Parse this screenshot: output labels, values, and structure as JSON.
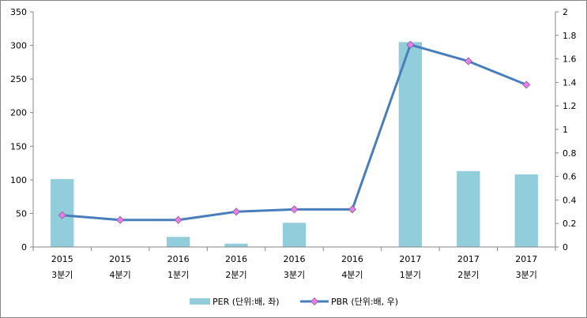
{
  "chart_data": {
    "type": "bar+line",
    "categories": [
      [
        "2015",
        "3분기"
      ],
      [
        "2015",
        "4분기"
      ],
      [
        "2016",
        "1분기"
      ],
      [
        "2016",
        "2분기"
      ],
      [
        "2016",
        "3분기"
      ],
      [
        "2016",
        "4분기"
      ],
      [
        "2017",
        "1분기"
      ],
      [
        "2017",
        "2분기"
      ],
      [
        "2017",
        "3분기"
      ]
    ],
    "series": [
      {
        "name": "PER (단위:배, 좌)",
        "type": "bar",
        "axis": "left",
        "color": "#92CDDC",
        "values": [
          101,
          0,
          15,
          5,
          36,
          0,
          305,
          113,
          108
        ]
      },
      {
        "name": "PBR (단위:배, 우)",
        "type": "line",
        "axis": "right",
        "color": "#4A7EBB",
        "marker_color": "#E680E6",
        "values": [
          0.27,
          0.23,
          0.23,
          0.3,
          0.32,
          0.32,
          1.72,
          1.58,
          1.38
        ]
      }
    ],
    "y_left": {
      "min": 0,
      "max": 350,
      "ticks": [
        "0",
        "50",
        "100",
        "150",
        "200",
        "250",
        "300",
        "350"
      ]
    },
    "y_right": {
      "min": 0,
      "max": 2,
      "ticks": [
        "0",
        "0.2",
        "0.4",
        "0.6",
        "0.8",
        "1",
        "1.2",
        "1.4",
        "1.6",
        "1.8",
        "2"
      ]
    },
    "grid": false,
    "legend_position": "bottom"
  }
}
